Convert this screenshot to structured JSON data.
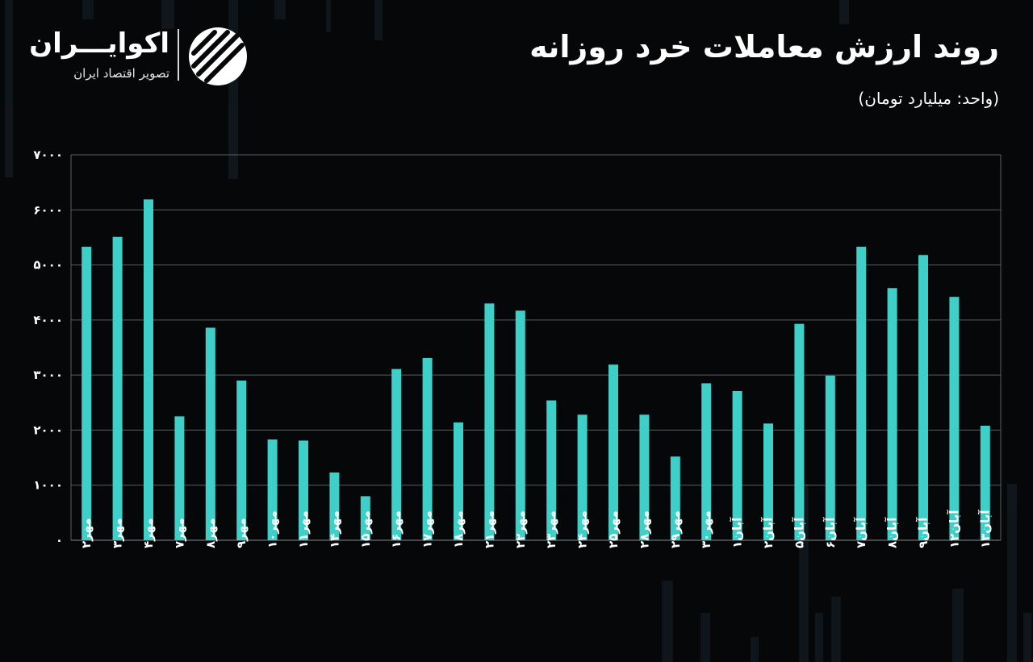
{
  "header": {
    "title": "روند ارزش معاملات خرد روزانه",
    "subtitle": "(واحد: میلیارد تومان)"
  },
  "logo": {
    "name": "اکوایـــران",
    "tagline": "تصویر اقتصاد ایران",
    "mark_icon": "ecoiran-stripes-logo-icon"
  },
  "colors": {
    "background": "#060708",
    "bar": "#3ecfc9",
    "grid": "#5a5d60",
    "text": "#ffffff"
  },
  "chart_data": {
    "type": "bar",
    "title": "روند ارزش معاملات خرد روزانه",
    "unit": "(واحد: میلیارد تومان)",
    "categories": [
      "مهر۲",
      "مهر۳",
      "مهر۴",
      "مهر۷",
      "مهر۸",
      "مهر۹",
      "مهر۱۰",
      "مهر۱۱",
      "مهر۱۴",
      "مهر۱۵",
      "مهر۱۶",
      "مهر۱۷",
      "مهر۱۸",
      "مهر۲۱",
      "مهر۲۲",
      "مهر۲۳",
      "مهر۲۴",
      "مهر۲۵",
      "مهر۲۸",
      "مهر۲۹",
      "مهر۳۰",
      "آبان۱",
      "آبان۲",
      "آبان۵",
      "آبان۶",
      "آبان۷",
      "آبان۸",
      "آبان۹",
      "آبان۱۲",
      "آبان۱۳"
    ],
    "values": [
      5330,
      5510,
      6190,
      2250,
      3860,
      2900,
      1830,
      1810,
      1230,
      800,
      3110,
      3310,
      2140,
      4300,
      4170,
      2540,
      2280,
      3190,
      2280,
      1520,
      2850,
      2710,
      2120,
      3930,
      2990,
      5330,
      4580,
      5180,
      4420,
      2080
    ],
    "ylim": [
      0,
      7000
    ],
    "yticks": [
      0,
      1000,
      2000,
      3000,
      4000,
      5000,
      6000,
      7000
    ],
    "ytick_labels": [
      "۰",
      "۱۰۰۰",
      "۲۰۰۰",
      "۳۰۰۰",
      "۴۰۰۰",
      "۵۰۰۰",
      "۶۰۰۰",
      "۷۰۰۰"
    ],
    "grid": true,
    "legend": "none"
  }
}
